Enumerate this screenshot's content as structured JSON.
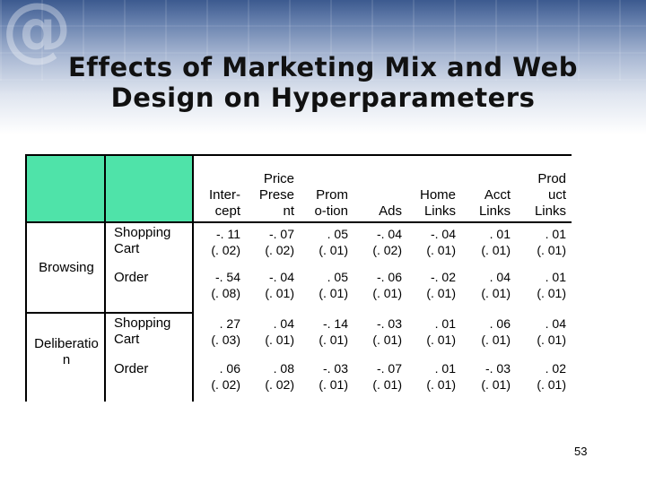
{
  "title": {
    "line1": "Effects of Marketing Mix and Web",
    "line2": "Design on Hyperparameters"
  },
  "columns": [
    {
      "label": "Inter-\ncept"
    },
    {
      "label": "Price\nPrese\nnt"
    },
    {
      "label": "Prom\no-tion"
    },
    {
      "label": "Ads"
    },
    {
      "label": "Home\nLinks"
    },
    {
      "label": "Acct\nLinks"
    },
    {
      "label": "Prod\nuct\nLinks"
    }
  ],
  "groups": [
    {
      "label": "Browsing"
    },
    {
      "label": "Deliberatio\nn"
    }
  ],
  "subrows": [
    {
      "label": "Shopping\nCart"
    },
    {
      "label": "Order"
    },
    {
      "label": "Shopping\nCart"
    },
    {
      "label": "Order"
    }
  ],
  "rows": [
    [
      {
        "v": "-. 11",
        "se": "(. 02)"
      },
      {
        "v": "-. 07",
        "se": "(. 02)"
      },
      {
        "v": ". 05",
        "se": "(. 01)"
      },
      {
        "v": "-. 04",
        "se": "(. 02)"
      },
      {
        "v": "-. 04",
        "se": "(. 01)"
      },
      {
        "v": ". 01",
        "se": "(. 01)"
      },
      {
        "v": ". 01",
        "se": "(. 01)"
      }
    ],
    [
      {
        "v": "-. 54",
        "se": "(. 08)"
      },
      {
        "v": "-. 04",
        "se": "(. 01)"
      },
      {
        "v": ". 05",
        "se": "(. 01)"
      },
      {
        "v": "-. 06",
        "se": "(. 01)"
      },
      {
        "v": "-. 02",
        "se": "(. 01)"
      },
      {
        "v": ". 04",
        "se": "(. 01)"
      },
      {
        "v": ". 01",
        "se": "(. 01)"
      }
    ],
    [
      {
        "v": ". 27",
        "se": "(. 03)"
      },
      {
        "v": ". 04",
        "se": "(. 01)"
      },
      {
        "v": "-. 14",
        "se": "(. 01)"
      },
      {
        "v": "-. 03",
        "se": "(. 01)"
      },
      {
        "v": ". 01",
        "se": "(. 01)"
      },
      {
        "v": ". 06",
        "se": "(. 01)"
      },
      {
        "v": ". 04",
        "se": "(. 01)"
      }
    ],
    [
      {
        "v": ". 06",
        "se": "(. 02)"
      },
      {
        "v": ". 08",
        "se": "(. 02)"
      },
      {
        "v": "-. 03",
        "se": "(. 01)"
      },
      {
        "v": "-. 07",
        "se": "(. 01)"
      },
      {
        "v": ". 01",
        "se": "(. 01)"
      },
      {
        "v": "-. 03",
        "se": "(. 01)"
      },
      {
        "v": ". 02",
        "se": "(. 01)"
      }
    ]
  ],
  "page_number": "53",
  "colors": {
    "header_fill": "#4fe3a9",
    "banner": "#3c5a8f"
  }
}
